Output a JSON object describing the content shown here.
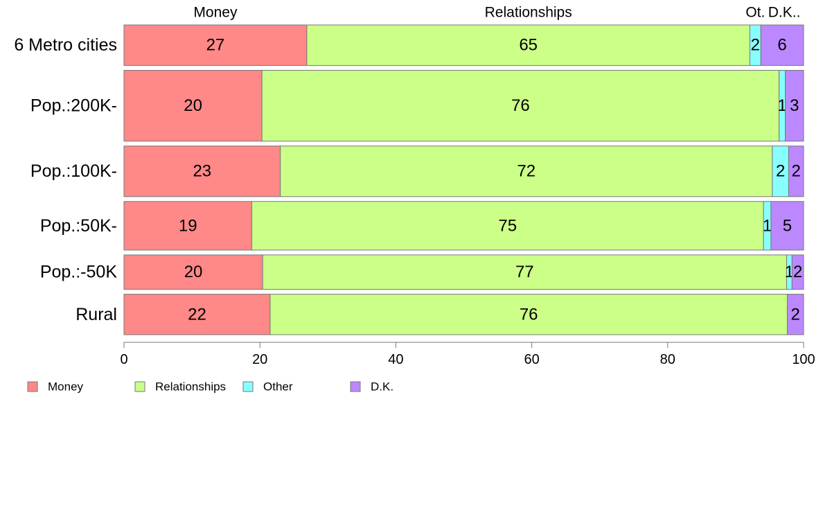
{
  "chart_data": {
    "type": "bar",
    "orientation": "horizontal",
    "stacked": true,
    "percent_stacked": true,
    "xlim": [
      0,
      100
    ],
    "x_ticks": [
      "0",
      "20",
      "40",
      "60",
      "80",
      "100"
    ],
    "grid": false,
    "legend_position": "bottom-left",
    "categories": [
      "6 Metro cities",
      "Pop.:200K-",
      "Pop.:100K-",
      "Pop.:50K-",
      "Pop.:-50K",
      "Rural"
    ],
    "top_labels": [
      "Money",
      "Relationships",
      "Ot.",
      "D.K.."
    ],
    "series": [
      {
        "name": "Money",
        "color": "#ff8888",
        "values": [
          26.9,
          20.3,
          23.0,
          18.8,
          20.4,
          21.5
        ],
        "labels": [
          "27",
          "20",
          "23",
          "19",
          "20",
          "22"
        ]
      },
      {
        "name": "Relationships",
        "color": "#ccff88",
        "values": [
          65.2,
          76.1,
          72.4,
          75.3,
          77.1,
          76.1
        ],
        "labels": [
          "65",
          "76",
          "72",
          "75",
          "77",
          "76"
        ]
      },
      {
        "name": "Other",
        "color": "#88ffff",
        "values": [
          1.6,
          0.9,
          2.4,
          1.1,
          0.8,
          0.0
        ],
        "labels": [
          "2",
          "1",
          "2",
          "1",
          "1",
          ""
        ]
      },
      {
        "name": "D.K.",
        "color": "#bb88ff",
        "values": [
          6.3,
          2.7,
          2.2,
          4.8,
          1.7,
          2.4
        ],
        "labels": [
          "6",
          "3",
          "2",
          "5",
          "2",
          "2"
        ]
      }
    ],
    "row_weights": [
      1.0,
      1.75,
      1.25,
      1.2,
      0.85,
      1.0
    ]
  }
}
